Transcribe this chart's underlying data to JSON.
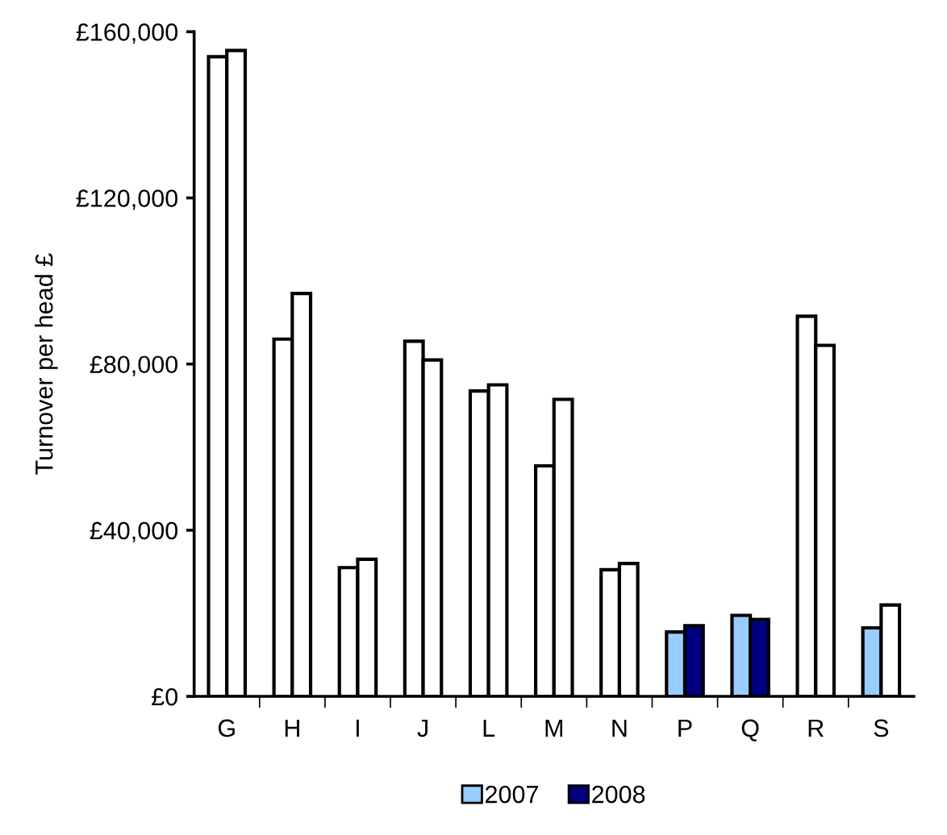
{
  "chart_data": {
    "type": "bar",
    "ylabel": "Turnover per head £",
    "categories": [
      "G",
      "H",
      "I",
      "J",
      "L",
      "M",
      "N",
      "P",
      "Q",
      "R",
      "S"
    ],
    "series": [
      {
        "name": "2007",
        "color": "#99ccff",
        "colors": [
          "#ffffff",
          "#ffffff",
          "#ffffff",
          "#ffffff",
          "#ffffff",
          "#ffffff",
          "#ffffff",
          "#99ccff",
          "#99ccff",
          "#ffffff",
          "#99ccff"
        ],
        "values": [
          154000,
          86000,
          31000,
          85500,
          73500,
          55500,
          30500,
          15500,
          19500,
          91500,
          16500
        ]
      },
      {
        "name": "2008",
        "color": "#000080",
        "colors": [
          "#ffffff",
          "#ffffff",
          "#ffffff",
          "#ffffff",
          "#ffffff",
          "#ffffff",
          "#ffffff",
          "#000080",
          "#000080",
          "#ffffff",
          "#ffffff"
        ],
        "values": [
          155500,
          97000,
          33000,
          81000,
          75000,
          71500,
          32000,
          17000,
          18500,
          84500,
          22000
        ]
      }
    ],
    "ylim": [
      0,
      160000
    ],
    "yticks": [
      {
        "value": 0,
        "label": "£0"
      },
      {
        "value": 40000,
        "label": "£40,000"
      },
      {
        "value": 80000,
        "label": "£80,000"
      },
      {
        "value": 120000,
        "label": "£120,000"
      },
      {
        "value": 160000,
        "label": "£160,000"
      }
    ],
    "grid": false,
    "legend": "bottom"
  }
}
